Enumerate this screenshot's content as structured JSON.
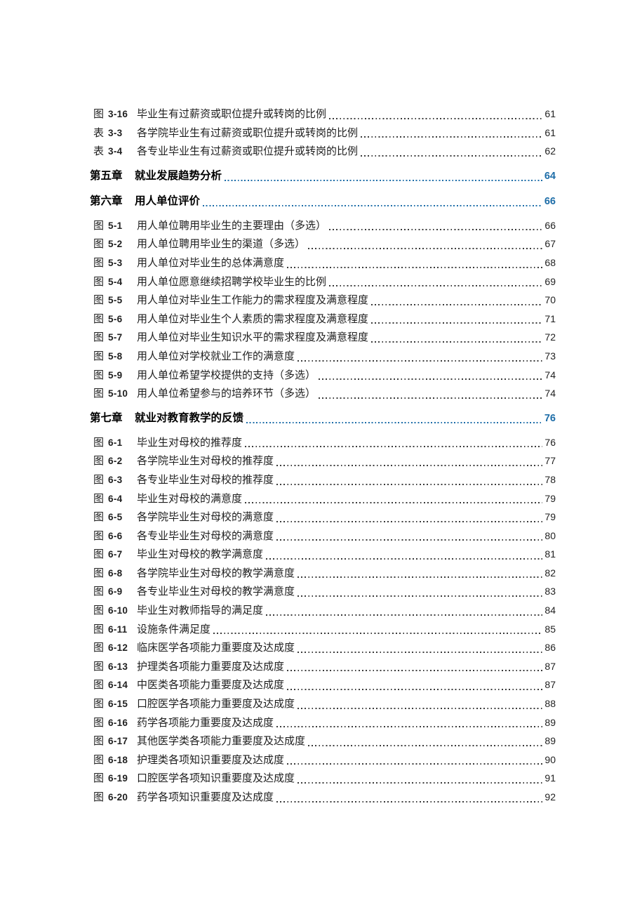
{
  "document": {
    "colors": {
      "chapter_accent": "#1d6da8",
      "entry_text": "#1f1f1f"
    },
    "toc_entries": [
      {
        "kind": "figure",
        "marker": "图",
        "num": "3-16",
        "title": "毕业生有过薪资或职位提升或转岗的比例",
        "page": "61"
      },
      {
        "kind": "table",
        "marker": "表",
        "num": "3-3",
        "title": "各学院毕业生有过薪资或职位提升或转岗的比例",
        "page": "61"
      },
      {
        "kind": "table",
        "marker": "表",
        "num": "3-4",
        "title": "各专业毕业生有过薪资或职位提升或转岗的比例",
        "page": "62"
      },
      {
        "kind": "chapter",
        "marker": "第五章",
        "num": "",
        "title": "就业发展趋势分析",
        "page": "64"
      },
      {
        "kind": "chapter",
        "marker": "第六章",
        "num": "",
        "title": "用人单位评价",
        "page": "66"
      },
      {
        "kind": "figure",
        "marker": "图",
        "num": "5-1",
        "title": "用人单位聘用毕业生的主要理由（多选）",
        "page": "66"
      },
      {
        "kind": "figure",
        "marker": "图",
        "num": "5-2",
        "title": "用人单位聘用毕业生的渠道（多选）",
        "page": "67"
      },
      {
        "kind": "figure",
        "marker": "图",
        "num": "5-3",
        "title": "用人单位对毕业生的总体满意度",
        "page": "68"
      },
      {
        "kind": "figure",
        "marker": "图",
        "num": "5-4",
        "title": "用人单位愿意继续招聘学校毕业生的比例",
        "page": "69"
      },
      {
        "kind": "figure",
        "marker": "图",
        "num": "5-5",
        "title": "用人单位对毕业生工作能力的需求程度及满意程度",
        "page": "70"
      },
      {
        "kind": "figure",
        "marker": "图",
        "num": "5-6",
        "title": "用人单位对毕业生个人素质的需求程度及满意程度",
        "page": "71"
      },
      {
        "kind": "figure",
        "marker": "图",
        "num": "5-7",
        "title": "用人单位对毕业生知识水平的需求程度及满意程度",
        "page": "72"
      },
      {
        "kind": "figure",
        "marker": "图",
        "num": "5-8",
        "title": "用人单位对学校就业工作的满意度",
        "page": "73"
      },
      {
        "kind": "figure",
        "marker": "图",
        "num": "5-9",
        "title": "用人单位希望学校提供的支持（多选）",
        "page": "74"
      },
      {
        "kind": "figure",
        "marker": "图",
        "num": "5-10",
        "title": "用人单位希望参与的培养环节（多选）",
        "page": "74"
      },
      {
        "kind": "chapter",
        "marker": "第七章",
        "num": "",
        "title": "就业对教育教学的反馈",
        "page": "76"
      },
      {
        "kind": "figure",
        "marker": "图",
        "num": "6-1",
        "title": "毕业生对母校的推荐度",
        "page": "76"
      },
      {
        "kind": "figure",
        "marker": "图",
        "num": "6-2",
        "title": "各学院毕业生对母校的推荐度",
        "page": "77"
      },
      {
        "kind": "figure",
        "marker": "图",
        "num": "6-3",
        "title": "各专业毕业生对母校的推荐度",
        "page": "78"
      },
      {
        "kind": "figure",
        "marker": "图",
        "num": "6-4",
        "title": "毕业生对母校的满意度",
        "page": "79"
      },
      {
        "kind": "figure",
        "marker": "图",
        "num": "6-5",
        "title": "各学院毕业生对母校的满意度",
        "page": "79"
      },
      {
        "kind": "figure",
        "marker": "图",
        "num": "6-6",
        "title": "各专业毕业生对母校的满意度",
        "page": "80"
      },
      {
        "kind": "figure",
        "marker": "图",
        "num": "6-7",
        "title": "毕业生对母校的教学满意度",
        "page": "81"
      },
      {
        "kind": "figure",
        "marker": "图",
        "num": "6-8",
        "title": "各学院毕业生对母校的教学满意度",
        "page": "82"
      },
      {
        "kind": "figure",
        "marker": "图",
        "num": "6-9",
        "title": "各专业毕业生对母校的教学满意度",
        "page": "83"
      },
      {
        "kind": "figure",
        "marker": "图",
        "num": "6-10",
        "title": "毕业生对教师指导的满足度",
        "page": "84"
      },
      {
        "kind": "figure",
        "marker": "图",
        "num": "6-11",
        "title": "设施条件满足度",
        "page": "85"
      },
      {
        "kind": "figure",
        "marker": "图",
        "num": "6-12",
        "title": "临床医学各项能力重要度及达成度",
        "page": "86"
      },
      {
        "kind": "figure",
        "marker": "图",
        "num": "6-13",
        "title": "护理类各项能力重要度及达成度",
        "page": "87"
      },
      {
        "kind": "figure",
        "marker": "图",
        "num": "6-14",
        "title": "中医类各项能力重要度及达成度",
        "page": "87"
      },
      {
        "kind": "figure",
        "marker": "图",
        "num": "6-15",
        "title": "口腔医学各项能力重要度及达成度",
        "page": "88"
      },
      {
        "kind": "figure",
        "marker": "图",
        "num": "6-16",
        "title": "药学各项能力重要度及达成度",
        "page": "89"
      },
      {
        "kind": "figure",
        "marker": "图",
        "num": "6-17",
        "title": "其他医学类各项能力重要度及达成度",
        "page": "89"
      },
      {
        "kind": "figure",
        "marker": "图",
        "num": "6-18",
        "title": "护理类各项知识重要度及达成度",
        "page": "90"
      },
      {
        "kind": "figure",
        "marker": "图",
        "num": "6-19",
        "title": "口腔医学各项知识重要度及达成度",
        "page": "91"
      },
      {
        "kind": "figure",
        "marker": "图",
        "num": "6-20",
        "title": "药学各项知识重要度及达成度",
        "page": "92"
      }
    ]
  }
}
